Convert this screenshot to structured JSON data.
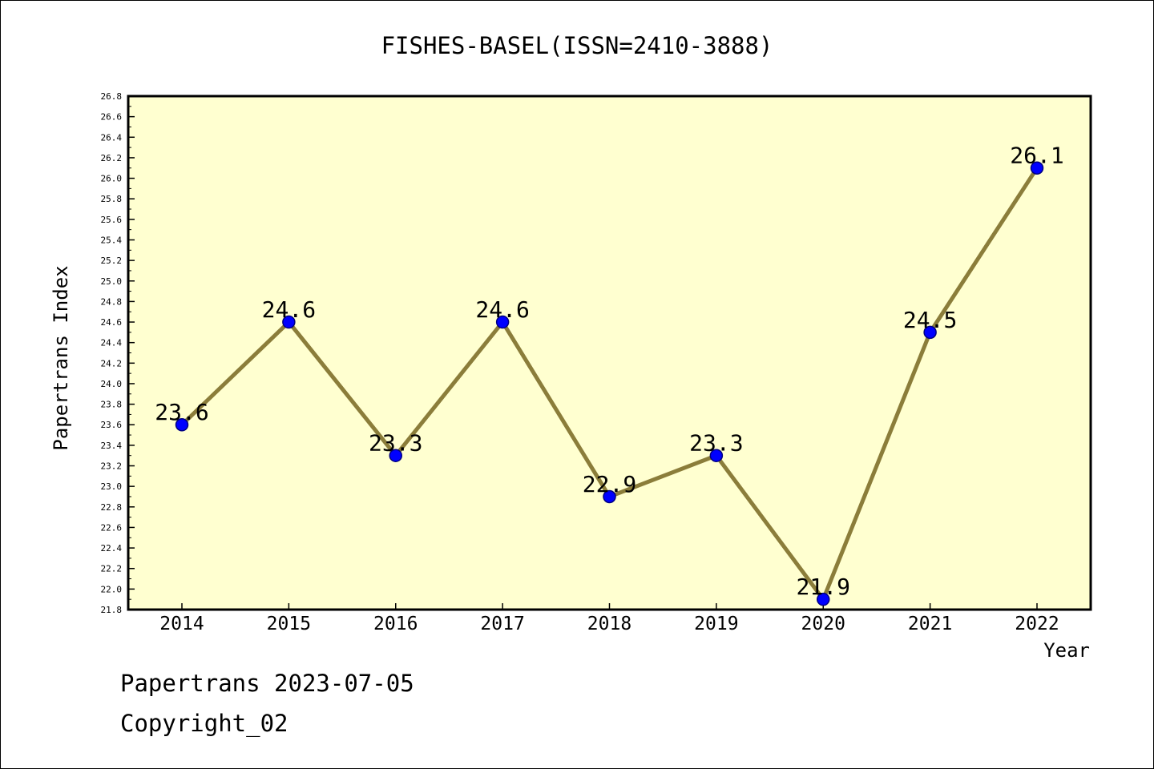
{
  "chart_data": {
    "type": "line",
    "title": "FISHES-BASEL(ISSN=2410-3888)",
    "xlabel": "Year",
    "ylabel": "Papertrans Index",
    "categories": [
      "2014",
      "2015",
      "2016",
      "2017",
      "2018",
      "2019",
      "2020",
      "2021",
      "2022"
    ],
    "values": [
      23.6,
      24.6,
      23.3,
      24.6,
      22.9,
      23.3,
      21.9,
      24.5,
      26.1
    ],
    "data_labels": [
      "23.6",
      "24.6",
      "23.3",
      "24.6",
      "22.9",
      "23.3",
      "21.9",
      "24.5",
      "26.1"
    ],
    "ylim": [
      21.8,
      26.8
    ],
    "yticks": [
      "21.8",
      "22.0",
      "22.2",
      "22.4",
      "22.6",
      "22.8",
      "23.0",
      "23.2",
      "23.4",
      "23.6",
      "23.8",
      "24.0",
      "24.2",
      "24.4",
      "24.6",
      "24.8",
      "25.0",
      "25.2",
      "25.4",
      "25.6",
      "25.8",
      "26.0",
      "26.2",
      "26.4",
      "26.6",
      "26.8"
    ],
    "grid": false,
    "colors": {
      "plot_background": "#ffffd0",
      "line": "#8b7d3a",
      "marker_fill": "#0000ff",
      "marker_edge": "#000080"
    }
  },
  "footer": {
    "line1": "Papertrans 2023-07-05",
    "line2": "Copyright_02"
  }
}
